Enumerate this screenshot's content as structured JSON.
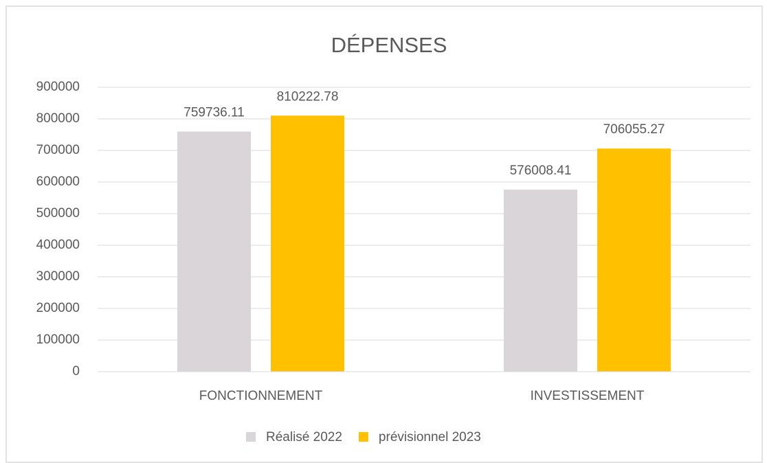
{
  "chart_data": {
    "type": "bar",
    "title": "DÉPENSES",
    "categories": [
      "FONCTIONNEMENT",
      "INVESTISSEMENT"
    ],
    "series": [
      {
        "name": "Réalisé 2022",
        "color": "#d9d5d8",
        "values": [
          759736.11,
          576008.41
        ]
      },
      {
        "name": "prévisionnel 2023",
        "color": "#ffc000",
        "values": [
          810222.78,
          706055.27
        ]
      }
    ],
    "ylim": [
      0,
      900000
    ],
    "yticks": [
      0,
      100000,
      200000,
      300000,
      400000,
      500000,
      600000,
      700000,
      800000,
      900000
    ],
    "grid": true,
    "legend": "bottom"
  }
}
